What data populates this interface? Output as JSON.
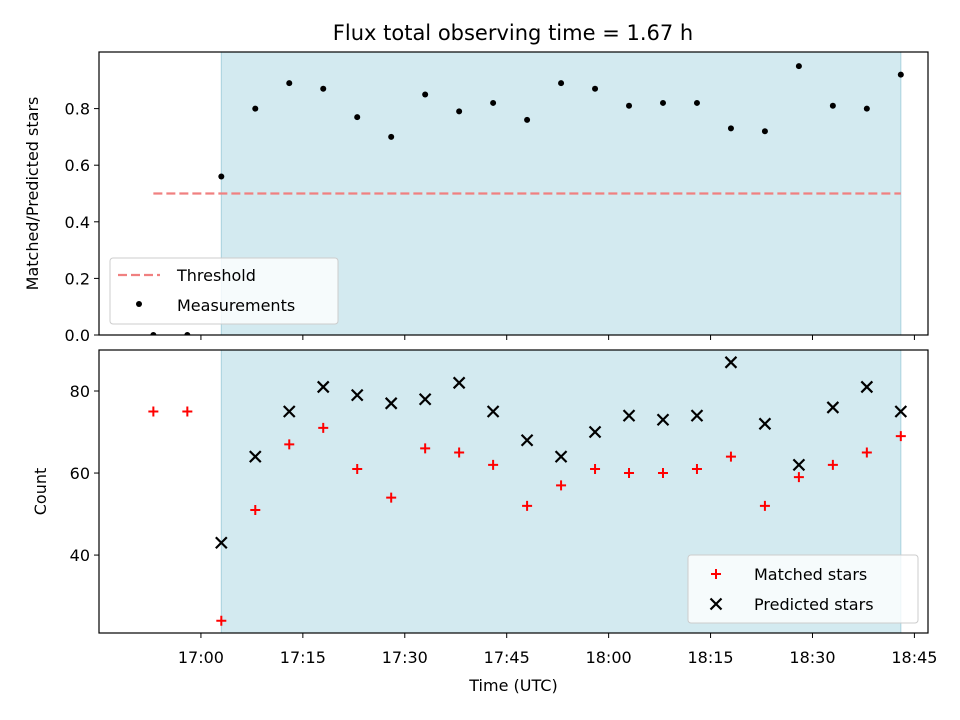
{
  "title": "Flux total observing time = 1.67 h",
  "colors": {
    "shade": "#d3eaf0",
    "shade_edge": "#a9d2de",
    "threshold": "#f08080",
    "measurement": "#000000",
    "matched": "#ff0000",
    "predicted": "#000000"
  },
  "chart_data": [
    {
      "type": "scatter",
      "ylabel": "Matched/Predicted stars",
      "ylim": [
        0,
        1.0
      ],
      "yticks": [
        "0.0",
        "0.2",
        "0.4",
        "0.6",
        "0.8"
      ],
      "ytick_values": [
        0,
        0.2,
        0.4,
        0.6,
        0.8
      ],
      "xlim": [
        "16:45",
        "18:47"
      ],
      "shaded_span": [
        "17:03",
        "18:43"
      ],
      "legend_position": "lower-left",
      "series": [
        {
          "name": "Threshold",
          "kind": "dashed-line",
          "x": [
            "16:53",
            "18:43"
          ],
          "y": [
            0.5,
            0.5
          ]
        },
        {
          "name": "Measurements",
          "kind": "points",
          "x": [
            "16:53",
            "16:58",
            "17:03",
            "17:08",
            "17:13",
            "17:18",
            "17:23",
            "17:28",
            "17:33",
            "17:38",
            "17:43",
            "17:48",
            "17:53",
            "17:58",
            "18:03",
            "18:08",
            "18:13",
            "18:18",
            "18:23",
            "18:28",
            "18:33",
            "18:38",
            "18:43"
          ],
          "y": [
            0.0,
            0.0,
            0.56,
            0.8,
            0.89,
            0.87,
            0.77,
            0.7,
            0.85,
            0.79,
            0.82,
            0.76,
            0.89,
            0.87,
            0.81,
            0.82,
            0.82,
            0.73,
            0.72,
            0.95,
            0.81,
            0.8,
            0.92
          ]
        }
      ]
    },
    {
      "type": "scatter",
      "xlabel": "Time (UTC)",
      "ylabel": "Count",
      "ylim": [
        21,
        90
      ],
      "yticks": [
        "40",
        "60",
        "80"
      ],
      "ytick_values": [
        40,
        60,
        80
      ],
      "xlim": [
        "16:45",
        "18:47"
      ],
      "xticks": [
        "17:00",
        "17:15",
        "17:30",
        "17:45",
        "18:00",
        "18:15",
        "18:30",
        "18:45"
      ],
      "shaded_span": [
        "17:03",
        "18:43"
      ],
      "legend_position": "lower-right",
      "x": [
        "16:53",
        "16:58",
        "17:03",
        "17:08",
        "17:13",
        "17:18",
        "17:23",
        "17:28",
        "17:33",
        "17:38",
        "17:43",
        "17:48",
        "17:53",
        "17:58",
        "18:03",
        "18:08",
        "18:13",
        "18:18",
        "18:23",
        "18:28",
        "18:33",
        "18:38",
        "18:43"
      ],
      "series": [
        {
          "name": "Matched stars",
          "marker": "plus",
          "values": [
            75,
            75,
            24,
            51,
            67,
            71,
            61,
            54,
            66,
            65,
            62,
            52,
            57,
            61,
            60,
            60,
            61,
            64,
            52,
            59,
            62,
            65,
            69
          ]
        },
        {
          "name": "Predicted stars",
          "marker": "x",
          "values": [
            null,
            null,
            43,
            64,
            75,
            81,
            79,
            77,
            78,
            82,
            75,
            68,
            64,
            70,
            74,
            73,
            74,
            87,
            72,
            62,
            76,
            81,
            75
          ]
        }
      ]
    }
  ]
}
